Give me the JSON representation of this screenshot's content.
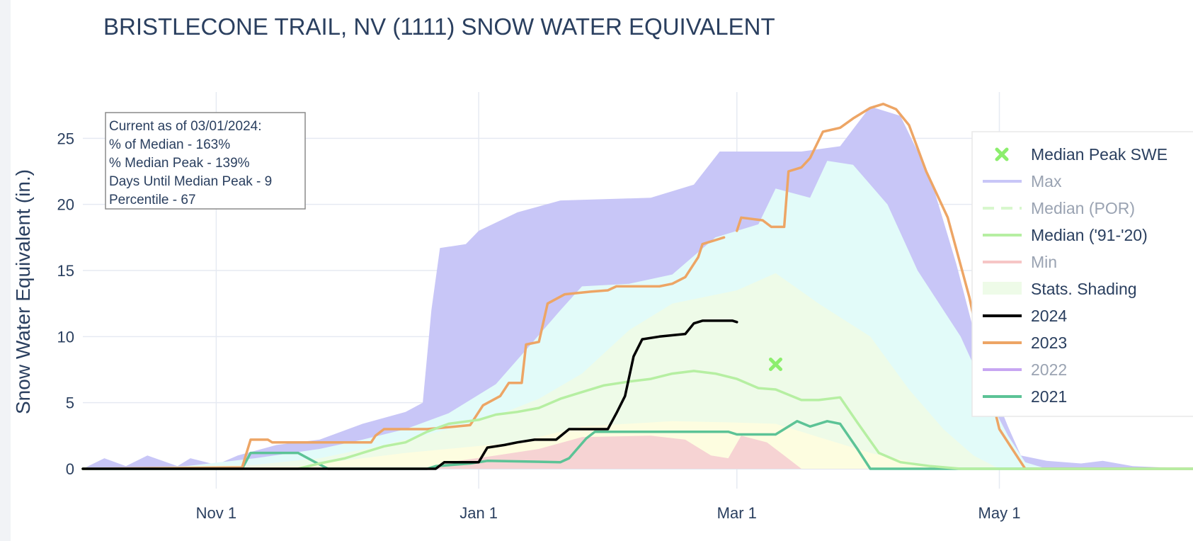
{
  "chart_data": {
    "type": "line",
    "title": "BRISTLECONE TRAIL, NV (1111) SNOW WATER EQUIVALENT",
    "ylabel": "Snow Water Equivalent (in.)",
    "xlabel": "",
    "ylim": [
      -1.5,
      28.5
    ],
    "xlim": [
      "2023-10-01",
      "2024-06-15"
    ],
    "x_ticks": [
      {
        "label": "Nov 1",
        "date": "2023-11-01"
      },
      {
        "label": "Jan 1",
        "date": "2024-01-01"
      },
      {
        "label": "Mar 1",
        "date": "2024-03-01"
      },
      {
        "label": "May 1",
        "date": "2024-05-01"
      }
    ],
    "y_ticks": [
      0,
      5,
      10,
      15,
      20,
      25
    ],
    "grid": true,
    "legend_position": "right",
    "annotation": [
      "Current as of 03/01/2024:",
      "% of Median - 163%",
      "% Median Peak - 139%",
      "Days Until Median Peak - 9",
      "Percentile - 67"
    ],
    "bands": [
      {
        "name": "Max",
        "color": "#c8c6f7",
        "lower": "p90",
        "upper": "max",
        "points": [
          [
            "2023-10-01",
            0
          ],
          [
            "2023-10-06",
            0.8
          ],
          [
            "2023-10-11",
            0.2
          ],
          [
            "2023-10-16",
            1.0
          ],
          [
            "2023-10-23",
            0.2
          ],
          [
            "2023-10-26",
            0.8
          ],
          [
            "2023-11-01",
            0.3
          ],
          [
            "2023-11-06",
            1.0
          ],
          [
            "2023-11-15",
            1.8
          ],
          [
            "2023-11-25",
            2.2
          ],
          [
            "2023-12-05",
            3.4
          ],
          [
            "2023-12-15",
            4.3
          ],
          [
            "2023-12-19",
            5.0
          ],
          [
            "2023-12-21",
            12.0
          ],
          [
            "2023-12-23",
            16.7
          ],
          [
            "2023-12-29",
            17.0
          ],
          [
            "2024-01-01",
            18.0
          ],
          [
            "2024-01-10",
            19.4
          ],
          [
            "2024-01-20",
            20.3
          ],
          [
            "2024-02-10",
            20.5
          ],
          [
            "2024-02-20",
            21.5
          ],
          [
            "2024-02-26",
            24.0
          ],
          [
            "2024-03-06",
            24.0
          ],
          [
            "2024-03-16",
            24.0
          ],
          [
            "2024-03-25",
            24.4
          ],
          [
            "2024-04-01",
            27.4
          ],
          [
            "2024-04-08",
            26.7
          ],
          [
            "2024-04-15",
            22.0
          ],
          [
            "2024-04-21",
            15.5
          ],
          [
            "2024-04-27",
            8.0
          ],
          [
            "2024-05-03",
            3.2
          ],
          [
            "2024-05-06",
            1.0
          ],
          [
            "2024-05-12",
            0.6
          ],
          [
            "2024-05-20",
            0.4
          ],
          [
            "2024-05-25",
            0.6
          ],
          [
            "2024-06-01",
            0.2
          ],
          [
            "2024-06-15",
            0
          ]
        ]
      },
      {
        "name": "Stats. Shading (75–90%)",
        "color": "#e2fbf9",
        "lower": "p75",
        "upper": "p90",
        "points": [
          [
            "2023-10-01",
            0
          ],
          [
            "2023-10-25",
            0.2
          ],
          [
            "2023-11-10",
            0.8
          ],
          [
            "2023-11-25",
            1.5
          ],
          [
            "2023-12-05",
            2.2
          ],
          [
            "2023-12-15",
            3.0
          ],
          [
            "2023-12-25",
            4.2
          ],
          [
            "2024-01-05",
            6.4
          ],
          [
            "2024-01-12",
            9.0
          ],
          [
            "2024-01-20",
            12.0
          ],
          [
            "2024-01-25",
            13.8
          ],
          [
            "2024-02-05",
            14.0
          ],
          [
            "2024-02-15",
            14.7
          ],
          [
            "2024-02-25",
            17.5
          ],
          [
            "2024-03-06",
            18.5
          ],
          [
            "2024-03-10",
            21.2
          ],
          [
            "2024-03-18",
            20.5
          ],
          [
            "2024-03-22",
            23.3
          ],
          [
            "2024-03-28",
            23.0
          ],
          [
            "2024-04-05",
            20.0
          ],
          [
            "2024-04-12",
            15.0
          ],
          [
            "2024-04-22",
            10.0
          ],
          [
            "2024-04-29",
            5.0
          ],
          [
            "2024-05-03",
            2.5
          ],
          [
            "2024-05-07",
            0.5
          ],
          [
            "2024-05-12",
            0
          ]
        ]
      },
      {
        "name": "Stats. Shading (50–75%)",
        "color": "#eefbe8",
        "lower": "p50",
        "upper": "p75",
        "points": [
          [
            "2023-10-01",
            0
          ],
          [
            "2023-11-10",
            0.3
          ],
          [
            "2023-11-25",
            0.8
          ],
          [
            "2023-12-10",
            1.8
          ],
          [
            "2023-12-25",
            3.0
          ],
          [
            "2024-01-05",
            4.0
          ],
          [
            "2024-01-15",
            5.3
          ],
          [
            "2024-01-25",
            7.2
          ],
          [
            "2024-02-05",
            10.5
          ],
          [
            "2024-02-15",
            12.5
          ],
          [
            "2024-03-01",
            13.5
          ],
          [
            "2024-03-10",
            14.8
          ],
          [
            "2024-03-20",
            12.5
          ],
          [
            "2024-04-01",
            10.0
          ],
          [
            "2024-04-10",
            6.0
          ],
          [
            "2024-04-18",
            3.0
          ],
          [
            "2024-04-25",
            1.0
          ],
          [
            "2024-05-01",
            0
          ]
        ]
      },
      {
        "name": "Stats. Shading (25–50%)",
        "color": "#fdfde0",
        "lower": "p25",
        "upper": "p50",
        "points": [
          [
            "2023-10-01",
            0
          ],
          [
            "2023-11-20",
            0.2
          ],
          [
            "2023-12-15",
            1.2
          ],
          [
            "2024-01-10",
            2.0
          ],
          [
            "2024-01-25",
            3.2
          ],
          [
            "2024-02-15",
            3.6
          ],
          [
            "2024-03-01",
            3.5
          ],
          [
            "2024-03-10",
            3.4
          ],
          [
            "2024-03-20",
            2.4
          ],
          [
            "2024-04-01",
            1.2
          ],
          [
            "2024-04-12",
            0.4
          ],
          [
            "2024-04-20",
            0
          ]
        ]
      },
      {
        "name": "Min",
        "color": "#f6d3d3",
        "lower": "min",
        "upper": "p25",
        "points": [
          [
            "2023-10-01",
            0
          ],
          [
            "2023-12-20",
            0
          ],
          [
            "2023-12-25",
            0.5
          ],
          [
            "2024-01-05",
            1.0
          ],
          [
            "2024-01-15",
            1.5
          ],
          [
            "2024-01-25",
            2.4
          ],
          [
            "2024-02-10",
            2.5
          ],
          [
            "2024-02-18",
            2.2
          ],
          [
            "2024-02-24",
            1.0
          ],
          [
            "2024-02-28",
            0.8
          ],
          [
            "2024-03-02",
            2.5
          ],
          [
            "2024-03-08",
            2.0
          ],
          [
            "2024-03-12",
            1.0
          ],
          [
            "2024-03-16",
            0
          ]
        ]
      }
    ],
    "series": [
      {
        "name": "2021",
        "color": "#5cc396",
        "width": 3.5,
        "points": [
          [
            "2023-10-01",
            0
          ],
          [
            "2023-11-07",
            0
          ],
          [
            "2023-11-09",
            1.2
          ],
          [
            "2023-11-20",
            1.2
          ],
          [
            "2023-11-24",
            0.5
          ],
          [
            "2023-11-27",
            0
          ],
          [
            "2023-12-20",
            0
          ],
          [
            "2023-12-22",
            0.2
          ],
          [
            "2023-12-30",
            0.4
          ],
          [
            "2024-01-03",
            0.6
          ],
          [
            "2024-01-20",
            0.5
          ],
          [
            "2024-01-22",
            0.8
          ],
          [
            "2024-01-26",
            2.3
          ],
          [
            "2024-01-28",
            2.8
          ],
          [
            "2024-02-10",
            2.8
          ],
          [
            "2024-02-28",
            2.8
          ],
          [
            "2024-03-01",
            2.6
          ],
          [
            "2024-03-10",
            2.6
          ],
          [
            "2024-03-15",
            3.6
          ],
          [
            "2024-03-18",
            3.2
          ],
          [
            "2024-03-22",
            3.6
          ],
          [
            "2024-03-25",
            3.4
          ],
          [
            "2024-03-29",
            1.5
          ],
          [
            "2024-04-01",
            0
          ],
          [
            "2024-06-15",
            0
          ]
        ]
      },
      {
        "name": "2023",
        "color": "#eda565",
        "width": 3.5,
        "points": [
          [
            "2023-10-01",
            0
          ],
          [
            "2023-11-07",
            0.1
          ],
          [
            "2023-11-09",
            2.2
          ],
          [
            "2023-11-13",
            2.2
          ],
          [
            "2023-11-14",
            2.0
          ],
          [
            "2023-12-07",
            2.0
          ],
          [
            "2023-12-08",
            2.5
          ],
          [
            "2023-12-10",
            3.0
          ],
          [
            "2023-12-20",
            3.0
          ],
          [
            "2023-12-30",
            3.3
          ],
          [
            "2024-01-02",
            4.8
          ],
          [
            "2024-01-06",
            5.5
          ],
          [
            "2024-01-08",
            6.5
          ],
          [
            "2024-01-11",
            6.5
          ],
          [
            "2024-01-12",
            9.4
          ],
          [
            "2024-01-15",
            9.6
          ],
          [
            "2024-01-17",
            12.5
          ],
          [
            "2024-01-21",
            13.2
          ],
          [
            "2024-01-27",
            13.4
          ],
          [
            "2024-01-31",
            13.5
          ],
          [
            "2024-02-02",
            13.8
          ],
          [
            "2024-02-12",
            13.8
          ],
          [
            "2024-02-15",
            14.0
          ],
          [
            "2024-02-18",
            14.5
          ],
          [
            "2024-02-21",
            16.0
          ],
          [
            "2024-02-22",
            17.0
          ],
          [
            "2024-02-27",
            17.5
          ]
        ]
      },
      {
        "name": "2023 (cont.)",
        "color": "#eda565",
        "width": 3.5,
        "points": [
          [
            "2024-03-01",
            18.0
          ],
          [
            "2024-03-02",
            19.0
          ],
          [
            "2024-03-07",
            18.8
          ],
          [
            "2024-03-09",
            18.3
          ],
          [
            "2024-03-12",
            18.3
          ],
          [
            "2024-03-13",
            22.5
          ],
          [
            "2024-03-16",
            22.8
          ],
          [
            "2024-03-18",
            23.5
          ],
          [
            "2024-03-21",
            25.5
          ],
          [
            "2024-03-25",
            25.8
          ],
          [
            "2024-03-28",
            26.5
          ],
          [
            "2024-04-01",
            27.3
          ],
          [
            "2024-04-04",
            27.6
          ],
          [
            "2024-04-07",
            27.2
          ],
          [
            "2024-04-10",
            26.0
          ],
          [
            "2024-04-14",
            22.5
          ],
          [
            "2024-04-19",
            19.0
          ],
          [
            "2024-04-24",
            13.0
          ],
          [
            "2024-04-28",
            7.0
          ],
          [
            "2024-05-01",
            3.0
          ],
          [
            "2024-05-04",
            1.5
          ],
          [
            "2024-05-07",
            0
          ],
          [
            "2024-06-15",
            0
          ]
        ]
      },
      {
        "name": "Median ('91-'20)",
        "color": "#b6efa2",
        "width": 3.5,
        "points": [
          [
            "2023-10-01",
            0
          ],
          [
            "2023-11-20",
            0
          ],
          [
            "2023-11-25",
            0.4
          ],
          [
            "2023-12-01",
            0.8
          ],
          [
            "2023-12-05",
            1.2
          ],
          [
            "2023-12-10",
            1.7
          ],
          [
            "2023-12-15",
            2.0
          ],
          [
            "2023-12-20",
            2.8
          ],
          [
            "2023-12-25",
            3.4
          ],
          [
            "2024-01-01",
            3.7
          ],
          [
            "2024-01-05",
            4.1
          ],
          [
            "2024-01-10",
            4.3
          ],
          [
            "2024-01-15",
            4.6
          ],
          [
            "2024-01-20",
            5.3
          ],
          [
            "2024-01-25",
            5.8
          ],
          [
            "2024-01-30",
            6.3
          ],
          [
            "2024-02-05",
            6.6
          ],
          [
            "2024-02-10",
            6.8
          ],
          [
            "2024-02-15",
            7.2
          ],
          [
            "2024-02-20",
            7.4
          ],
          [
            "2024-02-25",
            7.2
          ],
          [
            "2024-03-01",
            6.8
          ],
          [
            "2024-03-06",
            6.1
          ],
          [
            "2024-03-10",
            6.0
          ],
          [
            "2024-03-16",
            5.2
          ],
          [
            "2024-03-20",
            5.2
          ],
          [
            "2024-03-25",
            5.4
          ],
          [
            "2024-03-29",
            3.5
          ],
          [
            "2024-04-03",
            1.2
          ],
          [
            "2024-04-08",
            0.5
          ],
          [
            "2024-04-15",
            0.2
          ],
          [
            "2024-04-22",
            0
          ],
          [
            "2024-06-15",
            0
          ]
        ]
      },
      {
        "name": "2024",
        "color": "#000000",
        "width": 3.5,
        "points": [
          [
            "2023-10-01",
            0
          ],
          [
            "2023-10-05",
            0
          ],
          [
            "2023-11-25",
            0
          ],
          [
            "2023-12-22",
            0
          ],
          [
            "2023-12-24",
            0.5
          ],
          [
            "2024-01-01",
            0.5
          ],
          [
            "2024-01-03",
            1.6
          ],
          [
            "2024-01-07",
            1.8
          ],
          [
            "2024-01-10",
            2.0
          ],
          [
            "2024-01-14",
            2.2
          ],
          [
            "2024-01-19",
            2.2
          ],
          [
            "2024-01-22",
            3.0
          ],
          [
            "2024-01-31",
            3.0
          ],
          [
            "2024-02-02",
            4.2
          ],
          [
            "2024-02-04",
            5.5
          ],
          [
            "2024-02-06",
            8.5
          ],
          [
            "2024-02-08",
            9.8
          ],
          [
            "2024-02-12",
            10.0
          ],
          [
            "2024-02-18",
            10.2
          ],
          [
            "2024-02-20",
            11.0
          ],
          [
            "2024-02-22",
            11.2
          ],
          [
            "2024-02-29",
            11.2
          ],
          [
            "2024-03-01",
            11.1
          ]
        ]
      }
    ],
    "markers": [
      {
        "name": "Median Peak SWE",
        "symbol": "x",
        "color": "#8cee6d",
        "x": "2024-03-10",
        "y": 7.9
      }
    ],
    "legend": [
      {
        "label": "Median Peak SWE",
        "kind": "marker",
        "color": "#8cee6d",
        "dim": false
      },
      {
        "label": "Max",
        "kind": "line",
        "color": "#c8c6f7",
        "dim": true
      },
      {
        "label": "Median (POR)",
        "kind": "dash",
        "color": "#d8f7cd",
        "dim": true
      },
      {
        "label": "Median ('91-'20)",
        "kind": "line",
        "color": "#b6efa2",
        "dim": false
      },
      {
        "label": "Min",
        "kind": "line",
        "color": "#f6c6c6",
        "dim": true
      },
      {
        "label": "Stats. Shading",
        "kind": "fill",
        "color": "#eefbe8",
        "dim": false
      },
      {
        "label": "2024",
        "kind": "line",
        "color": "#000000",
        "dim": false
      },
      {
        "label": "2023",
        "kind": "line",
        "color": "#eda565",
        "dim": false
      },
      {
        "label": "2022",
        "kind": "line",
        "color": "#c7a6f2",
        "dim": true
      },
      {
        "label": "2021",
        "kind": "line",
        "color": "#5cc396",
        "dim": false
      }
    ]
  }
}
